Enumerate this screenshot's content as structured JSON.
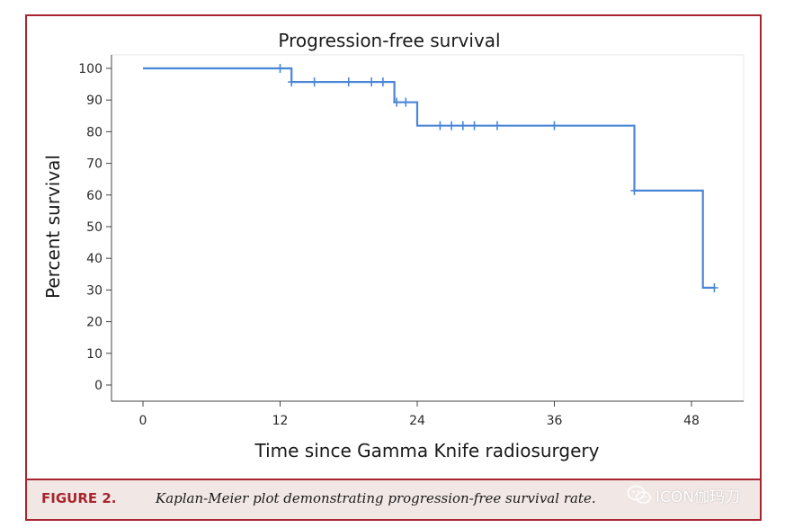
{
  "chart_data": {
    "type": "line",
    "subtype": "kaplan-meier-step",
    "title": "Progression-free survival",
    "xlabel": "Time since Gamma Knife radiosurgery",
    "ylabel": "Percent survival",
    "xlim": [
      -3,
      52
    ],
    "ylim": [
      0,
      100
    ],
    "x_ticks": [
      "0",
      "12",
      "24",
      "36",
      "48"
    ],
    "y_ticks": [
      "0",
      "10",
      "20",
      "30",
      "40",
      "50",
      "60",
      "70",
      "80",
      "90",
      "100"
    ],
    "grid": false,
    "legend": "none",
    "series": [
      {
        "color": "#4a86d8",
        "step_points": [
          {
            "x": 0,
            "y": 100
          },
          {
            "x": 13,
            "y": 100
          },
          {
            "x": 13,
            "y": 95.7
          },
          {
            "x": 22,
            "y": 95.7
          },
          {
            "x": 22,
            "y": 89.3
          },
          {
            "x": 24,
            "y": 89.3
          },
          {
            "x": 24,
            "y": 81.9
          },
          {
            "x": 43,
            "y": 81.9
          },
          {
            "x": 43,
            "y": 61.4
          },
          {
            "x": 49,
            "y": 61.4
          },
          {
            "x": 49,
            "y": 30.7
          },
          {
            "x": 50,
            "y": 30.7
          }
        ],
        "censored": [
          {
            "x": 12,
            "y": 100
          },
          {
            "x": 13,
            "y": 95.7
          },
          {
            "x": 15,
            "y": 95.7
          },
          {
            "x": 18,
            "y": 95.7
          },
          {
            "x": 20,
            "y": 95.7
          },
          {
            "x": 21,
            "y": 95.7
          },
          {
            "x": 22.2,
            "y": 89.3
          },
          {
            "x": 23,
            "y": 89.3
          },
          {
            "x": 26,
            "y": 81.9
          },
          {
            "x": 27,
            "y": 81.9
          },
          {
            "x": 28,
            "y": 81.9
          },
          {
            "x": 29,
            "y": 81.9
          },
          {
            "x": 31,
            "y": 81.9
          },
          {
            "x": 36,
            "y": 81.9
          },
          {
            "x": 43,
            "y": 61.4
          },
          {
            "x": 50,
            "y": 30.7
          }
        ]
      }
    ]
  },
  "caption": {
    "label": "FIGURE 2.",
    "text": "Kaplan-Meier plot demonstrating progression-free survival rate."
  },
  "watermark": {
    "text": "ICON伽玛刀",
    "icon": "wechat-icon"
  },
  "colors": {
    "frame": "#a8242f",
    "caption_bg": "#f1e8e6",
    "line": "#4a86d8",
    "axis": "#444444"
  }
}
